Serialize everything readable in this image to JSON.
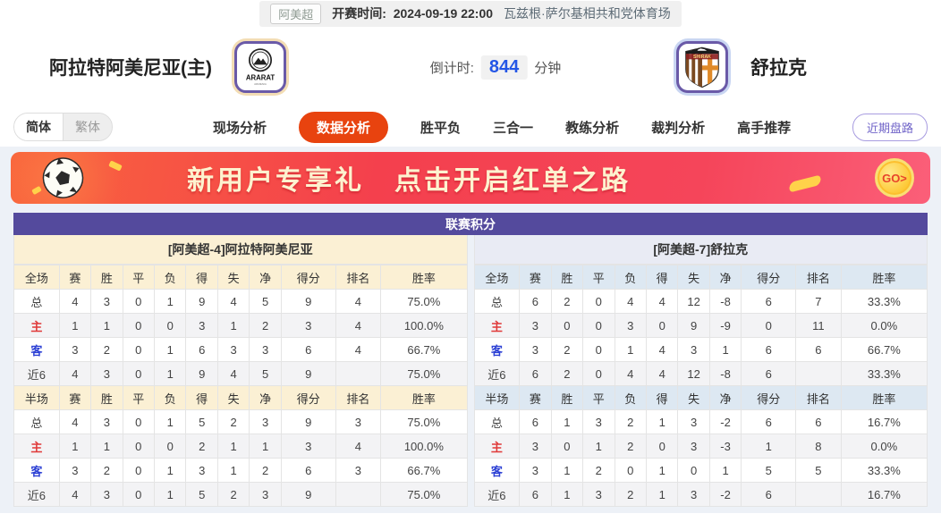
{
  "top_bar": {
    "league": "阿美超",
    "kickoff_label": "开赛时间:",
    "kickoff_time": "2024-09-19 22:00",
    "venue": "瓦兹根·萨尔基相共和党体育场"
  },
  "header": {
    "home_team": "阿拉特阿美尼亚(主)",
    "home_logo_text": "ARARAT",
    "countdown_label": "倒计时:",
    "countdown_value": "844",
    "countdown_unit": "分钟",
    "away_team": "舒拉克",
    "away_logo_text": "SHIRAK"
  },
  "nav": {
    "lang_simplified": "简体",
    "lang_traditional": "繁体",
    "tabs": [
      {
        "name": "tab-live-analysis",
        "label": "现场分析",
        "active": false
      },
      {
        "name": "tab-data-analysis",
        "label": "数据分析",
        "active": true
      },
      {
        "name": "tab-win-draw-loss",
        "label": "胜平负",
        "active": false
      },
      {
        "name": "tab-three-in-one",
        "label": "三合一",
        "active": false
      },
      {
        "name": "tab-coach-analysis",
        "label": "教练分析",
        "active": false
      },
      {
        "name": "tab-referee-analysis",
        "label": "裁判分析",
        "active": false
      },
      {
        "name": "tab-expert-picks",
        "label": "高手推荐",
        "active": false
      }
    ],
    "recent_button": "近期盘路"
  },
  "banner": {
    "title1": "新用户专享礼",
    "title2": "点击开启红单之路",
    "go_label": "GO>"
  },
  "league_table": {
    "title": "联赛积分",
    "home": {
      "subtitle": "[阿美超-4]阿拉特阿美尼亚",
      "full_header": [
        "全场",
        "赛",
        "胜",
        "平",
        "负",
        "得",
        "失",
        "净",
        "得分",
        "排名",
        "胜率"
      ],
      "full_rows": [
        {
          "label": "总",
          "type": "total",
          "values": [
            "4",
            "3",
            "0",
            "1",
            "9",
            "4",
            "5",
            "9",
            "4",
            "75.0%"
          ]
        },
        {
          "label": "主",
          "type": "home",
          "values": [
            "1",
            "1",
            "0",
            "0",
            "3",
            "1",
            "2",
            "3",
            "4",
            "100.0%"
          ]
        },
        {
          "label": "客",
          "type": "away",
          "values": [
            "3",
            "2",
            "0",
            "1",
            "6",
            "3",
            "3",
            "6",
            "4",
            "66.7%"
          ]
        },
        {
          "label": "近6",
          "type": "recent",
          "values": [
            "4",
            "3",
            "0",
            "1",
            "9",
            "4",
            "5",
            "9",
            "",
            "75.0%"
          ]
        }
      ],
      "half_header": [
        "半场",
        "赛",
        "胜",
        "平",
        "负",
        "得",
        "失",
        "净",
        "得分",
        "排名",
        "胜率"
      ],
      "half_rows": [
        {
          "label": "总",
          "type": "total",
          "values": [
            "4",
            "3",
            "0",
            "1",
            "5",
            "2",
            "3",
            "9",
            "3",
            "75.0%"
          ]
        },
        {
          "label": "主",
          "type": "home",
          "values": [
            "1",
            "1",
            "0",
            "0",
            "2",
            "1",
            "1",
            "3",
            "4",
            "100.0%"
          ]
        },
        {
          "label": "客",
          "type": "away",
          "values": [
            "3",
            "2",
            "0",
            "1",
            "3",
            "1",
            "2",
            "6",
            "3",
            "66.7%"
          ]
        },
        {
          "label": "近6",
          "type": "recent",
          "values": [
            "4",
            "3",
            "0",
            "1",
            "5",
            "2",
            "3",
            "9",
            "",
            "75.0%"
          ]
        }
      ]
    },
    "away": {
      "subtitle": "[阿美超-7]舒拉克",
      "full_header": [
        "全场",
        "赛",
        "胜",
        "平",
        "负",
        "得",
        "失",
        "净",
        "得分",
        "排名",
        "胜率"
      ],
      "full_rows": [
        {
          "label": "总",
          "type": "total",
          "values": [
            "6",
            "2",
            "0",
            "4",
            "4",
            "12",
            "-8",
            "6",
            "7",
            "33.3%"
          ]
        },
        {
          "label": "主",
          "type": "home",
          "values": [
            "3",
            "0",
            "0",
            "3",
            "0",
            "9",
            "-9",
            "0",
            "11",
            "0.0%"
          ]
        },
        {
          "label": "客",
          "type": "away",
          "values": [
            "3",
            "2",
            "0",
            "1",
            "4",
            "3",
            "1",
            "6",
            "6",
            "66.7%"
          ]
        },
        {
          "label": "近6",
          "type": "recent",
          "values": [
            "6",
            "2",
            "0",
            "4",
            "4",
            "12",
            "-8",
            "6",
            "",
            "33.3%"
          ]
        }
      ],
      "half_header": [
        "半场",
        "赛",
        "胜",
        "平",
        "负",
        "得",
        "失",
        "净",
        "得分",
        "排名",
        "胜率"
      ],
      "half_rows": [
        {
          "label": "总",
          "type": "total",
          "values": [
            "6",
            "1",
            "3",
            "2",
            "1",
            "3",
            "-2",
            "6",
            "6",
            "16.7%"
          ]
        },
        {
          "label": "主",
          "type": "home",
          "values": [
            "3",
            "0",
            "1",
            "2",
            "0",
            "3",
            "-3",
            "1",
            "8",
            "0.0%"
          ]
        },
        {
          "label": "客",
          "type": "away",
          "values": [
            "3",
            "1",
            "2",
            "0",
            "1",
            "0",
            "1",
            "5",
            "5",
            "33.3%"
          ]
        },
        {
          "label": "近6",
          "type": "recent",
          "values": [
            "6",
            "1",
            "3",
            "2",
            "1",
            "3",
            "-2",
            "6",
            "",
            "16.7%"
          ]
        }
      ]
    }
  },
  "colors": {
    "accent_purple": "#544a9d",
    "tab_active_orange": "#e8430f",
    "home_section_cream": "#fbf0d4",
    "away_section_blue": "#dde8f2",
    "home_row_label_red": "#e03a3a",
    "away_row_label_blue": "#2b3fd4",
    "countdown_blue": "#2456e6",
    "banner_red": "#f4404d"
  }
}
